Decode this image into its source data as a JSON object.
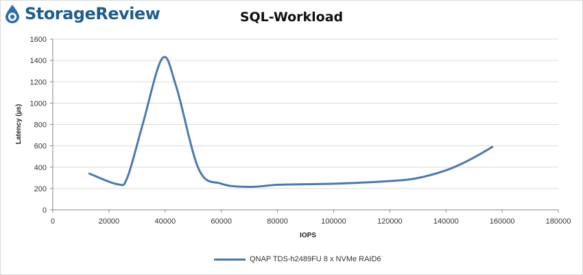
{
  "branding": {
    "logo_text": "StorageReview",
    "logo_icon": "storagereview-drop-icon"
  },
  "colors": {
    "series": "#4a78b0",
    "grid": "#d9d9d9",
    "axis": "#868686",
    "logo": "#1f5d8c"
  },
  "chart_data": {
    "type": "line",
    "title": "SQL-Workload",
    "xlabel": "IOPS",
    "ylabel": "Latency (µs)",
    "xlim": [
      0,
      180000
    ],
    "ylim": [
      0,
      1600
    ],
    "x_ticks": [
      0,
      20000,
      40000,
      60000,
      80000,
      100000,
      120000,
      140000,
      160000,
      180000
    ],
    "y_ticks": [
      0,
      200,
      400,
      600,
      800,
      1000,
      1200,
      1400,
      1600
    ],
    "grid": "horizontal",
    "legend_position": "bottom",
    "series": [
      {
        "name": "QNAP TDS-h2489FU 8 x NVMe RAID6",
        "x": [
          13000,
          23000,
          26500,
          32000,
          39000,
          44000,
          52000,
          60000,
          70000,
          80000,
          90000,
          100000,
          110000,
          120000,
          127000,
          132000,
          137000,
          142000,
          147000,
          152000,
          156500
        ],
        "y": [
          340,
          240,
          300,
          800,
          1420,
          1150,
          380,
          245,
          215,
          235,
          240,
          245,
          255,
          270,
          285,
          310,
          345,
          390,
          450,
          520,
          590
        ]
      }
    ]
  }
}
